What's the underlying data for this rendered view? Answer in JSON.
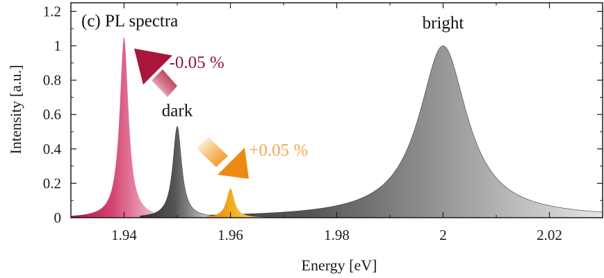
{
  "chart_data": {
    "type": "area",
    "title": "(c) PL spectra",
    "xlabel": "Energy [eV]",
    "ylabel": "Intensity [a.u.]",
    "xlim": [
      1.93,
      2.03
    ],
    "ylim": [
      0,
      1.25
    ],
    "x_ticks": [
      1.94,
      1.96,
      1.98,
      2.0,
      2.02
    ],
    "x_tick_labels": [
      "1.94",
      "1.96",
      "1.98",
      "2",
      "2.02"
    ],
    "y_ticks": [
      0,
      0.2,
      0.4,
      0.6,
      0.8,
      1.0,
      1.2
    ],
    "y_tick_labels": [
      "0",
      "0.2",
      "0.4",
      "0.6",
      "0.8",
      "1",
      "1.2"
    ],
    "grid": false,
    "series": [
      {
        "name": "bright",
        "center": 2.0,
        "amplitude": 1.0,
        "width": 0.0055,
        "color": "#4a4a4a"
      },
      {
        "name": "dark",
        "center": 1.95,
        "amplitude": 0.53,
        "width": 0.001,
        "color": "#4a4a4a"
      },
      {
        "center": 1.94,
        "amplitude": 1.05,
        "width": 0.001,
        "color": "#c8365f"
      },
      {
        "center": 1.96,
        "amplitude": 0.17,
        "width": 0.0009,
        "color": "#f2a21e"
      }
    ],
    "annotations": [
      {
        "text": "bright",
        "x": 2.0,
        "y": 1.1
      },
      {
        "text": "dark",
        "x": 1.95,
        "y": 0.59
      },
      {
        "text": "-0.05 %",
        "x": 1.9485,
        "y": 0.87,
        "color": "#8b1a3a"
      },
      {
        "text": "+0.05 %",
        "x": 1.9635,
        "y": 0.36,
        "color": "#f0a94a"
      }
    ]
  }
}
